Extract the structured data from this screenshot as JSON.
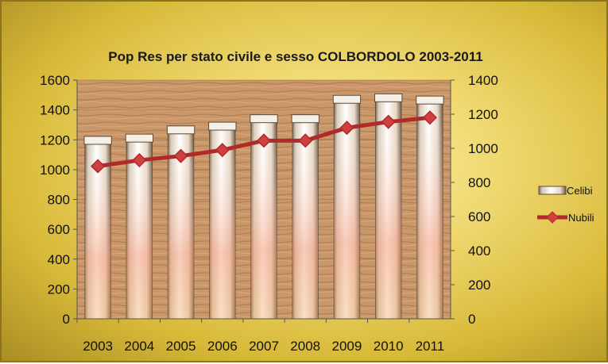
{
  "chart_data": {
    "type": "bar",
    "title": "Pop Res per stato civile e sesso  COLBORDOLO 2003-2011",
    "categories": [
      "2003",
      "2004",
      "2005",
      "2006",
      "2007",
      "2008",
      "2009",
      "2010",
      "2011"
    ],
    "series": [
      {
        "name": "Celibi",
        "type": "bar",
        "axis": "left",
        "values": [
          1175,
          1190,
          1245,
          1270,
          1320,
          1320,
          1450,
          1460,
          1445
        ]
      },
      {
        "name": "Nubili",
        "type": "line",
        "axis": "right",
        "values": [
          895,
          930,
          955,
          990,
          1045,
          1045,
          1120,
          1155,
          1180
        ]
      }
    ],
    "y_left": {
      "ylim": [
        0,
        1600
      ],
      "ticks": [
        "0",
        "200",
        "400",
        "600",
        "800",
        "1000",
        "1200",
        "1400",
        "1600"
      ]
    },
    "y_right": {
      "ylim": [
        0,
        1400
      ],
      "ticks": [
        "0",
        "200",
        "400",
        "600",
        "800",
        "1000",
        "1200",
        "1400"
      ]
    },
    "grid": true,
    "legend": "right",
    "colors": {
      "line": "#b02a2a",
      "marker": "#d04040",
      "bar_top": "#ffffff",
      "bar_bottom": "#f6a98a",
      "plot_bg": "#c9976a"
    }
  }
}
